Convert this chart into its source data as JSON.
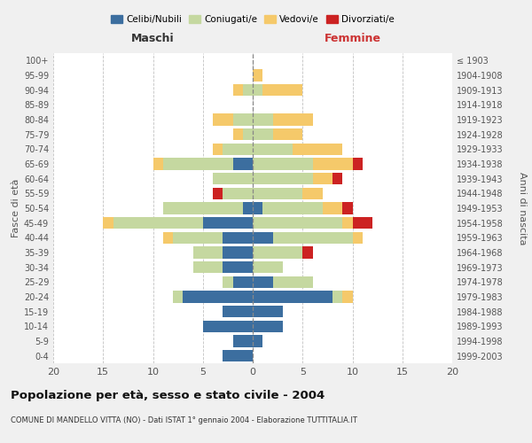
{
  "age_groups": [
    "0-4",
    "5-9",
    "10-14",
    "15-19",
    "20-24",
    "25-29",
    "30-34",
    "35-39",
    "40-44",
    "45-49",
    "50-54",
    "55-59",
    "60-64",
    "65-69",
    "70-74",
    "75-79",
    "80-84",
    "85-89",
    "90-94",
    "95-99",
    "100+"
  ],
  "birth_years": [
    "1999-2003",
    "1994-1998",
    "1989-1993",
    "1984-1988",
    "1979-1983",
    "1974-1978",
    "1969-1973",
    "1964-1968",
    "1959-1963",
    "1954-1958",
    "1949-1953",
    "1944-1948",
    "1939-1943",
    "1934-1938",
    "1929-1933",
    "1924-1928",
    "1919-1923",
    "1914-1918",
    "1909-1913",
    "1904-1908",
    "≤ 1903"
  ],
  "maschi": {
    "celibi": [
      3,
      2,
      5,
      3,
      7,
      2,
      3,
      3,
      3,
      5,
      1,
      0,
      0,
      2,
      0,
      0,
      0,
      0,
      0,
      0,
      0
    ],
    "coniugati": [
      0,
      0,
      0,
      0,
      1,
      1,
      3,
      3,
      5,
      9,
      8,
      3,
      4,
      7,
      3,
      1,
      2,
      0,
      1,
      0,
      0
    ],
    "vedovi": [
      0,
      0,
      0,
      0,
      0,
      0,
      0,
      0,
      1,
      1,
      0,
      0,
      0,
      1,
      1,
      1,
      2,
      0,
      1,
      0,
      0
    ],
    "divorziati": [
      0,
      0,
      0,
      0,
      0,
      0,
      0,
      0,
      0,
      0,
      0,
      1,
      0,
      0,
      0,
      0,
      0,
      0,
      0,
      0,
      0
    ]
  },
  "femmine": {
    "nubili": [
      0,
      1,
      3,
      3,
      8,
      2,
      0,
      0,
      2,
      0,
      1,
      0,
      0,
      0,
      0,
      0,
      0,
      0,
      0,
      0,
      0
    ],
    "coniugate": [
      0,
      0,
      0,
      0,
      1,
      4,
      3,
      5,
      8,
      9,
      6,
      5,
      6,
      6,
      4,
      2,
      2,
      0,
      1,
      0,
      0
    ],
    "vedove": [
      0,
      0,
      0,
      0,
      1,
      0,
      0,
      0,
      1,
      1,
      2,
      2,
      2,
      4,
      5,
      3,
      4,
      0,
      4,
      1,
      0
    ],
    "divorziate": [
      0,
      0,
      0,
      0,
      0,
      0,
      0,
      1,
      0,
      2,
      1,
      0,
      1,
      1,
      0,
      0,
      0,
      0,
      0,
      0,
      0
    ]
  },
  "colors": {
    "celibi": "#3c6e9f",
    "coniugati": "#c5d8a0",
    "vedovi": "#f5c96a",
    "divorziati": "#cc2222"
  },
  "xlim": 20,
  "title": "Popolazione per età, sesso e stato civile - 2004",
  "subtitle": "COMUNE DI MANDELLO VITTA (NO) - Dati ISTAT 1° gennaio 2004 - Elaborazione TUTTITALIA.IT",
  "ylabel_left": "Fasce di età",
  "ylabel_right": "Anni di nascita",
  "xlabel_left": "Maschi",
  "xlabel_right": "Femmine",
  "bg_color": "#f0f0f0",
  "plot_bg": "#ffffff"
}
